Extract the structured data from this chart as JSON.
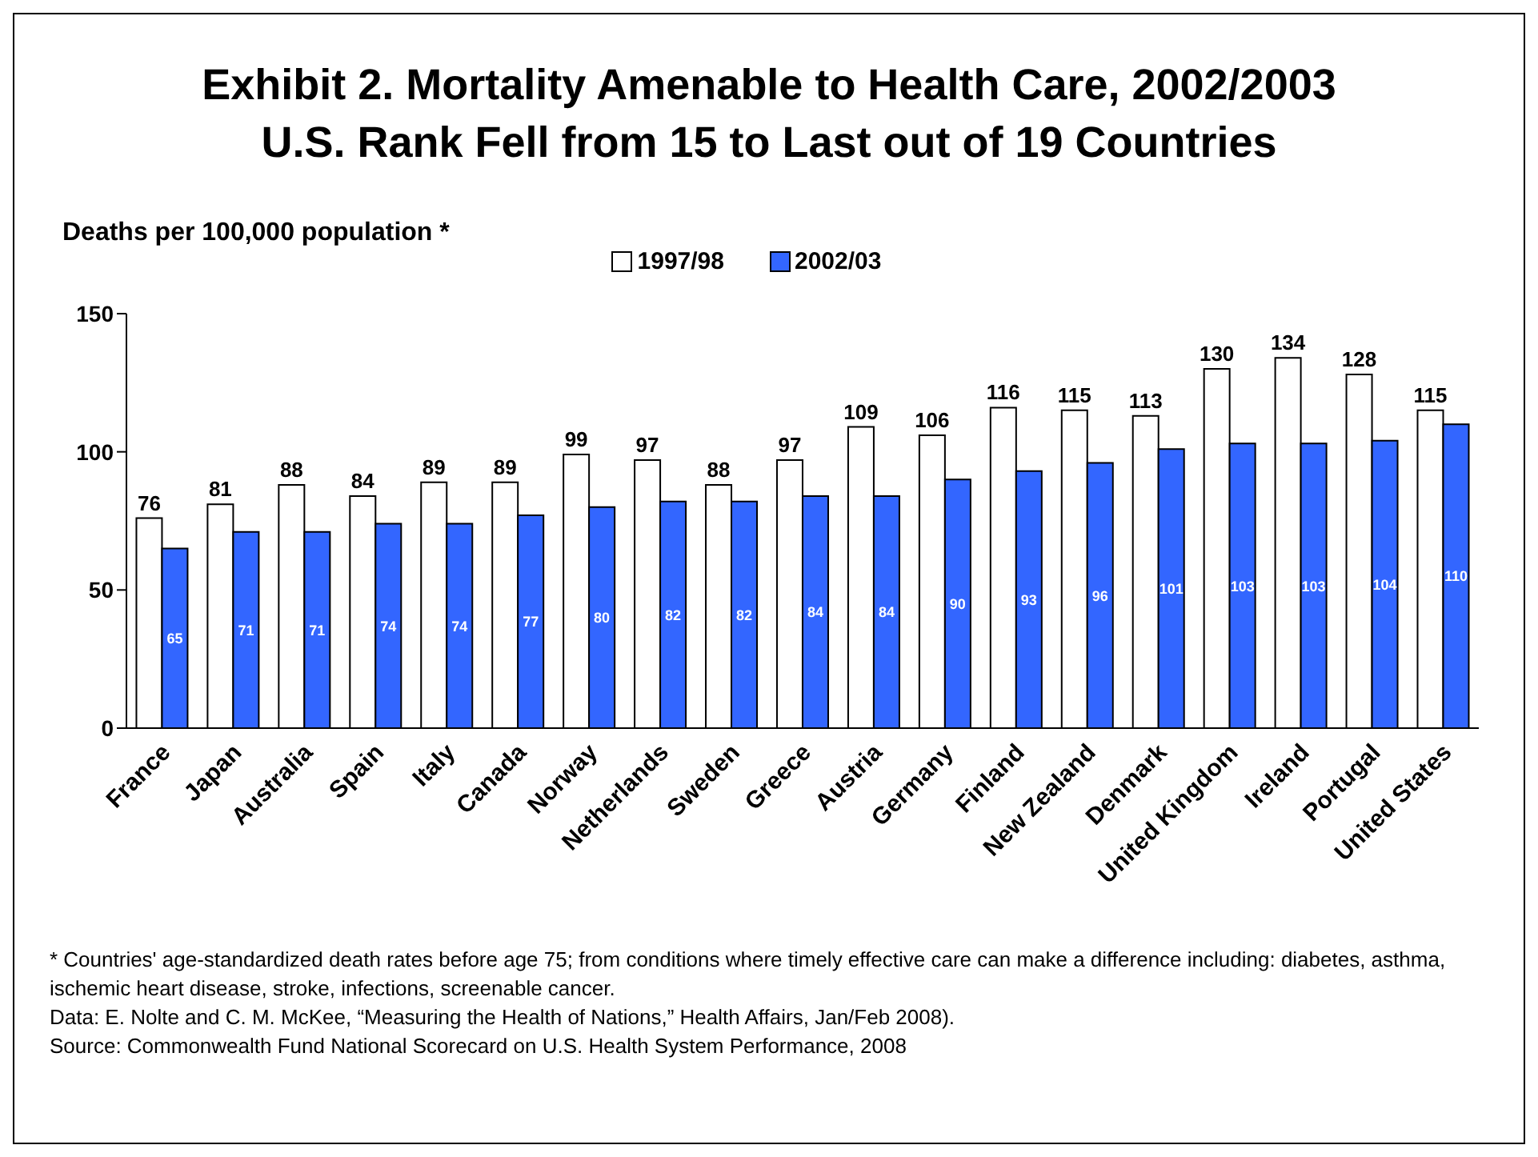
{
  "chart_data": {
    "type": "bar",
    "title": "Exhibit 2. Mortality Amenable to Health Care, 2002/2003",
    "subtitle": "U.S. Rank Fell from 15 to Last out of 19 Countries",
    "ylabel": "Deaths per 100,000 population *",
    "categories": [
      "France",
      "Japan",
      "Australia",
      "Spain",
      "Italy",
      "Canada",
      "Norway",
      "Netherlands",
      "Sweden",
      "Greece",
      "Austria",
      "Germany",
      "Finland",
      "New Zealand",
      "Denmark",
      "United Kingdom",
      "Ireland",
      "Portugal",
      "United States"
    ],
    "series": [
      {
        "name": "1997/98",
        "color": "#ffffff",
        "values": [
          76,
          81,
          88,
          84,
          89,
          89,
          99,
          97,
          88,
          97,
          109,
          106,
          116,
          115,
          113,
          130,
          134,
          128,
          115
        ]
      },
      {
        "name": "2002/03",
        "color": "#3366ff",
        "values": [
          65,
          71,
          71,
          74,
          74,
          77,
          80,
          82,
          82,
          84,
          84,
          90,
          93,
          96,
          101,
          103,
          103,
          104,
          110
        ]
      }
    ],
    "ylim": [
      0,
      150
    ],
    "yticks": [
      0,
      50,
      100,
      150
    ],
    "grid": false,
    "legend": "top",
    "data_labels": true,
    "annotations": [
      "* Countries' age-standardized death rates before age 75; from conditions where timely effective care can make a difference including: diabetes, asthma, ischemic heart disease, stroke, infections, screenable cancer.",
      "Data: E. Nolte and C. M. McKee, “Measuring the Health of Nations,” Health Affairs, Jan/Feb 2008).",
      "Source: Commonwealth Fund National Scorecard on U.S. Health System Performance, 2008"
    ]
  }
}
